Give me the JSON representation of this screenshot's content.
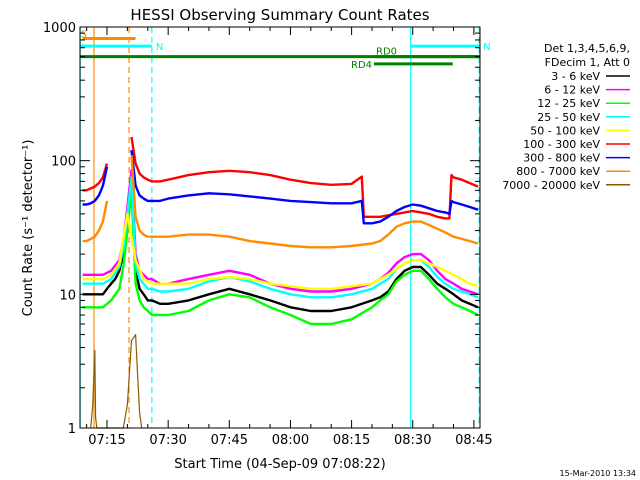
{
  "chart_data": {
    "type": "line",
    "title": "HESSI Observing Summary Count Rates",
    "xlabel": "Start Time (04-Sep-09 07:08:22)",
    "ylabel": "Count Rate (s⁻¹ detector⁻¹)",
    "ylog": true,
    "ylim": [
      1,
      1000
    ],
    "xlim_minutes_after_07_00": [
      8.37,
      106.5
    ],
    "x_ticks": [
      {
        "label": "07:15",
        "min": 15
      },
      {
        "label": "07:30",
        "min": 30
      },
      {
        "label": "07:45",
        "min": 45
      },
      {
        "label": "08:00",
        "min": 60
      },
      {
        "label": "08:15",
        "min": 75
      },
      {
        "label": "08:30",
        "min": 90
      },
      {
        "label": "08:45",
        "min": 105
      }
    ],
    "y_ticks": [
      {
        "label": "1",
        "value": 1
      },
      {
        "label": "10",
        "value": 10
      },
      {
        "label": "100",
        "value": 100
      },
      {
        "label": "1000",
        "value": 1000
      }
    ],
    "legend": {
      "header": [
        "Det 1,3,4,5,6,9,",
        "FDecim 1, Att 0"
      ],
      "placement": "right"
    },
    "series": [
      {
        "name": "3 - 6 keV",
        "color": "#000000",
        "x": [
          9,
          10,
          11,
          12,
          13,
          14,
          15,
          16,
          17,
          18,
          19,
          20,
          21,
          22,
          23,
          24,
          25,
          26,
          28,
          30,
          35,
          40,
          45,
          50,
          55,
          60,
          65,
          70,
          75,
          80,
          82,
          84,
          86,
          88,
          90,
          92,
          94,
          96,
          98,
          100,
          102,
          104,
          106
        ],
        "y": [
          10,
          10,
          10,
          10,
          10,
          10,
          11,
          12,
          13,
          15,
          20,
          35,
          70,
          15,
          11,
          10,
          9,
          9,
          8.5,
          8.5,
          9,
          10,
          11,
          10,
          9,
          8,
          7.5,
          7.5,
          8,
          9,
          9.5,
          10.5,
          13,
          15,
          16,
          16,
          14,
          12,
          11,
          10,
          9,
          8.5,
          8
        ]
      },
      {
        "name": "6 - 12 keV",
        "color": "#ff00ff",
        "x": [
          9,
          10,
          12,
          14,
          16,
          18,
          19,
          20,
          21,
          22,
          23,
          24,
          25,
          26,
          28,
          30,
          35,
          40,
          45,
          50,
          55,
          60,
          65,
          70,
          75,
          80,
          82,
          84,
          86,
          88,
          90,
          92,
          94,
          96,
          98,
          100,
          102,
          104,
          106
        ],
        "y": [
          14,
          14,
          14,
          14,
          15,
          18,
          25,
          45,
          85,
          20,
          15,
          14,
          13,
          13,
          12,
          12,
          13,
          14,
          15,
          14,
          12,
          11,
          10.5,
          10.5,
          11,
          12,
          13,
          14.5,
          17,
          19,
          20,
          20,
          18,
          15,
          13,
          12,
          11,
          10.5,
          10
        ]
      },
      {
        "name": "12 - 25 keV",
        "color": "#00ff00",
        "x": [
          9,
          10,
          12,
          14,
          16,
          18,
          19,
          20,
          21,
          22,
          23,
          24,
          25,
          26,
          28,
          30,
          35,
          40,
          45,
          50,
          55,
          60,
          65,
          70,
          75,
          80,
          82,
          84,
          86,
          88,
          90,
          92,
          94,
          96,
          98,
          100,
          102,
          104,
          106
        ],
        "y": [
          8,
          8,
          8,
          8,
          9,
          11,
          16,
          30,
          60,
          12,
          9,
          8,
          7.5,
          7,
          7,
          7,
          7.5,
          9,
          10,
          9.5,
          8,
          7,
          6,
          6,
          6.5,
          8,
          9,
          10,
          12.5,
          14,
          15,
          15,
          13,
          11,
          9.5,
          8.5,
          8,
          7.5,
          7
        ]
      },
      {
        "name": "25 - 50 keV",
        "color": "#00ffff",
        "x": [
          9,
          10,
          12,
          14,
          16,
          18,
          19,
          20,
          21,
          22,
          23,
          24,
          25,
          26,
          28,
          30,
          35,
          40,
          45,
          50,
          55,
          60,
          65,
          70,
          75,
          80,
          82,
          84,
          86,
          88,
          90,
          92,
          94,
          96,
          98,
          100,
          102,
          104,
          106
        ],
        "y": [
          12,
          12,
          12,
          12,
          13,
          16,
          22,
          40,
          75,
          17,
          13,
          12,
          11,
          11,
          10.5,
          10.5,
          11,
          12.5,
          13.5,
          12.5,
          11,
          10,
          9.5,
          9.5,
          10,
          11,
          12,
          13,
          15.5,
          17,
          18,
          18,
          16,
          13.5,
          12,
          11,
          10.5,
          10,
          9.5
        ]
      },
      {
        "name": "50 - 100 keV",
        "color": "#ffff00",
        "x": [
          9,
          10,
          12,
          14,
          16,
          18,
          20,
          22,
          24,
          26,
          28,
          30,
          35,
          40,
          45,
          50,
          55,
          60,
          65,
          70,
          75,
          80,
          82,
          84,
          86,
          88,
          90,
          92,
          94,
          96,
          98,
          100,
          102,
          104,
          106
        ],
        "y": [
          13,
          13,
          13,
          13,
          14,
          17,
          40,
          18,
          13,
          12,
          12,
          12,
          12,
          13,
          13.5,
          13,
          12,
          11.5,
          11,
          11,
          11.5,
          12,
          13,
          14,
          15.5,
          17,
          18,
          18,
          17,
          16,
          15,
          14,
          13,
          12,
          11.5
        ]
      },
      {
        "name": "100 - 300 keV",
        "color": "#ff0000",
        "x": [
          9,
          10,
          11,
          12,
          13,
          14,
          15,
          16,
          17,
          18,
          19,
          20,
          21,
          22,
          23,
          24,
          25,
          26,
          28,
          30,
          35,
          40,
          45,
          50,
          55,
          60,
          65,
          70,
          75,
          77.5,
          78,
          80,
          82,
          84,
          86,
          88,
          90,
          92,
          94,
          96,
          98,
          99,
          99.5,
          100,
          102,
          104,
          106
        ],
        "y": [
          60,
          60,
          62,
          64,
          68,
          75,
          95,
          0,
          0,
          0,
          0,
          0,
          150,
          95,
          80,
          75,
          72,
          70,
          70,
          72,
          78,
          82,
          84,
          82,
          78,
          72,
          68,
          66,
          67,
          76,
          38,
          38,
          38,
          39,
          40,
          41,
          42,
          41,
          40,
          38,
          37,
          37,
          78,
          75,
          72,
          68,
          64
        ]
      },
      {
        "name": "300 - 800 keV",
        "color": "#0000ff",
        "x": [
          9,
          10,
          11,
          12,
          13,
          14,
          15,
          16,
          17,
          18,
          19,
          20,
          21,
          22,
          23,
          24,
          25,
          26,
          28,
          30,
          35,
          40,
          45,
          50,
          55,
          60,
          65,
          70,
          75,
          77.5,
          78,
          80,
          82,
          84,
          86,
          88,
          90,
          92,
          94,
          96,
          98,
          99,
          99.5,
          100,
          102,
          104,
          106
        ],
        "y": [
          47,
          47,
          48,
          50,
          55,
          65,
          90,
          0,
          0,
          0,
          0,
          0,
          120,
          65,
          55,
          52,
          50,
          50,
          50,
          52,
          55,
          57,
          56,
          54,
          52,
          50,
          49,
          48,
          48,
          50,
          34,
          34,
          35,
          38,
          42,
          45,
          47,
          46,
          44,
          42,
          41,
          40,
          50,
          49,
          47,
          45,
          43
        ]
      },
      {
        "name": "800 - 7000 keV",
        "color": "#ff8c00",
        "x": [
          9,
          10,
          11,
          12,
          13,
          14,
          15,
          16,
          17,
          18,
          19,
          20,
          21,
          22,
          23,
          24,
          25,
          26,
          28,
          30,
          35,
          40,
          45,
          50,
          55,
          60,
          65,
          70,
          75,
          80,
          82,
          84,
          86,
          88,
          90,
          92,
          94,
          96,
          98,
          100,
          102,
          104,
          106
        ],
        "y": [
          25,
          25,
          26,
          27,
          30,
          35,
          50,
          0,
          0,
          0,
          0,
          0,
          110,
          38,
          30,
          28,
          27,
          27,
          27,
          27,
          28,
          28,
          27,
          25,
          24,
          23,
          22.5,
          22.5,
          23,
          24,
          25,
          28,
          32,
          34,
          35,
          35,
          33,
          31,
          29,
          27,
          26,
          25,
          24
        ]
      },
      {
        "name": "7000 - 20000 keV",
        "color": "#8b5a00",
        "x": [
          11,
          11.5,
          12,
          12.2,
          12.5,
          13,
          14,
          15,
          16,
          17,
          18,
          19,
          20,
          21,
          22,
          22.5,
          23,
          23.5
        ],
        "y": [
          1,
          1.5,
          3.8,
          1.2,
          1,
          1,
          1,
          1,
          1,
          1,
          1,
          1,
          1.5,
          4.5,
          5,
          2.5,
          1.3,
          1
        ]
      }
    ],
    "annotations": {
      "bars": [
        {
          "label": "S",
          "color": "#ff8c00",
          "x_start": 9.0,
          "x_end": 22.0,
          "value": 820
        },
        {
          "label": "N",
          "color": "#00ffff",
          "x_start": 8.37,
          "x_end": 26.0,
          "value": 720
        },
        {
          "label": "N",
          "color": "#00ffff",
          "x_start": 89.5,
          "x_end": 106.3,
          "value": 720
        },
        {
          "label": "",
          "color": "#008000",
          "x_start": 8.37,
          "x_end": 106.5,
          "value": 600
        },
        {
          "label": "RD0",
          "color": "#008000",
          "x_start": 80.5,
          "x_end": 106.5,
          "value": 600
        },
        {
          "label": "RD4",
          "color": "#008000",
          "x_start": 80.5,
          "x_end": 99.8,
          "value": 530
        }
      ],
      "vlines": [
        {
          "min": 8.4,
          "color": "#00ffff",
          "style": "solid"
        },
        {
          "min": 11.8,
          "color": "#ff8c00",
          "style": "solid"
        },
        {
          "min": 20.4,
          "color": "#ff8c00",
          "style": "dashed"
        },
        {
          "min": 26.0,
          "color": "#00ffff",
          "style": "dashed"
        },
        {
          "min": 89.5,
          "color": "#00ffff",
          "style": "solid"
        },
        {
          "min": 106.3,
          "color": "#00ffff",
          "style": "dashed"
        }
      ]
    },
    "footer_timestamp": "15-Mar-2010 13:34",
    "grid": false
  }
}
